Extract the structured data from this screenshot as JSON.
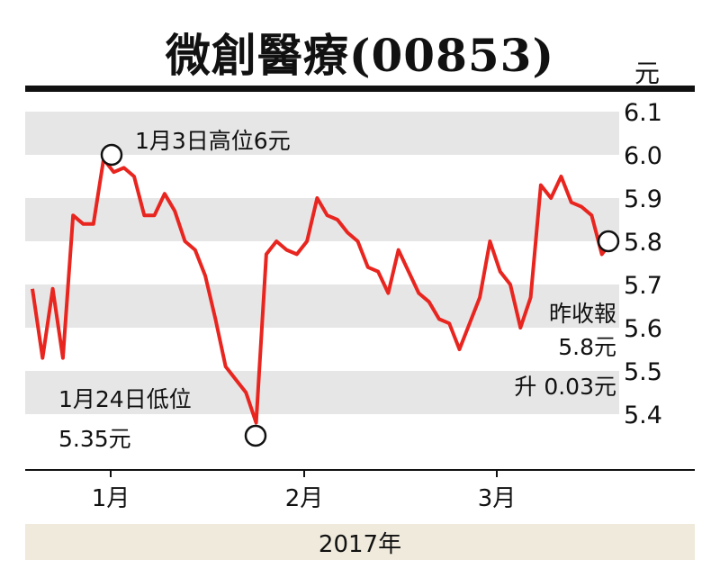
{
  "header": {
    "title": "微創醫療(00853)",
    "unit": "元"
  },
  "footer": {
    "year": "2017年"
  },
  "annotations": {
    "high": "1月3日高位6元",
    "low_line1": "1月24日低位",
    "low_line2": "5.35元",
    "close_line1": "昨收報",
    "close_line2": "5.8元",
    "close_line3": "升 0.03元"
  },
  "colors": {
    "line": "#e8251f",
    "band": "#e6e6e6",
    "footer": "#efeadb"
  },
  "chart_data": {
    "type": "line",
    "ylim": [
      5.35,
      6.1
    ],
    "yticks": [
      "6.1",
      "6.0",
      "5.9",
      "5.8",
      "5.7",
      "5.6",
      "5.5",
      "5.4"
    ],
    "xticks": [
      "1月",
      "2月",
      "3月"
    ],
    "grid": "alternating horizontal bands",
    "series": [
      {
        "values": [
          5.69,
          5.53,
          5.69,
          5.53,
          5.86,
          5.84,
          5.84,
          5.99,
          5.96,
          5.97,
          5.95,
          5.86,
          5.86,
          5.91,
          5.87,
          5.8,
          5.78,
          5.72,
          5.62,
          5.51,
          5.48,
          5.45,
          5.38,
          5.77,
          5.8,
          5.78,
          5.77,
          5.8,
          5.9,
          5.86,
          5.85,
          5.82,
          5.8,
          5.74,
          5.73,
          5.68,
          5.78,
          5.73,
          5.68,
          5.66,
          5.62,
          5.61,
          5.55,
          5.61,
          5.67,
          5.8,
          5.73,
          5.7,
          5.6,
          5.67,
          5.93,
          5.9,
          5.95,
          5.89,
          5.88,
          5.86,
          5.77,
          5.8
        ]
      }
    ],
    "markers": [
      {
        "label": "1月3日高位",
        "value": 6.0
      },
      {
        "label": "1月24日低位",
        "value": 5.35
      },
      {
        "label": "昨收報",
        "value": 5.8
      }
    ]
  }
}
